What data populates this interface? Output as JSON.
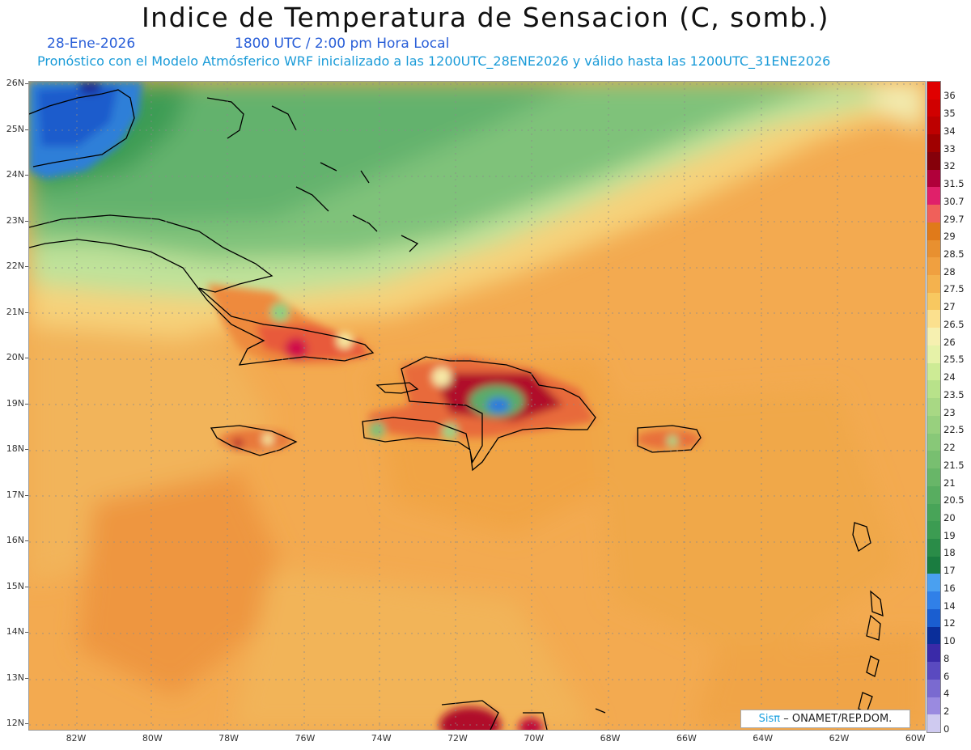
{
  "header": {
    "title": "Indice de Temperatura de Sensacion (C, somb.)",
    "date": "28-Ene-2026",
    "time": "1800 UTC / 2:00 pm Hora Local",
    "description": "Pronóstico con el Modelo Atmósferico WRF inicializado a las 1200UTC_28ENE2026 y válido hasta las  1200UTC_31ENE2026"
  },
  "map": {
    "lat_labels": [
      "26N",
      "25N",
      "24N",
      "23N",
      "22N",
      "21N",
      "20N",
      "19N",
      "18N",
      "17N",
      "16N",
      "15N",
      "14N",
      "13N",
      "12N"
    ],
    "lon_labels": [
      "82W",
      "80W",
      "78W",
      "76W",
      "74W",
      "72W",
      "70W",
      "68W",
      "66W",
      "64W",
      "62W",
      "60W"
    ],
    "extent": {
      "lon_min": -83.2,
      "lon_max": -60,
      "lat_min": 11.9,
      "lat_max": 26.05
    }
  },
  "colorbar": {
    "labels": [
      "36",
      "35",
      "34",
      "33",
      "32",
      "31.5",
      "30.7",
      "29.7",
      "29",
      "28.5",
      "28",
      "27.5",
      "27",
      "26.5",
      "26",
      "25.5",
      "24",
      "23.5",
      "23",
      "22.5",
      "22",
      "21.5",
      "21",
      "20.5",
      "20",
      "19",
      "18",
      "17",
      "16",
      "14",
      "12",
      "10",
      "8",
      "6",
      "4",
      "2",
      "0"
    ],
    "colors": [
      "#e00000",
      "#d00000",
      "#bd0000",
      "#a00000",
      "#85000a",
      "#b0003a",
      "#e0206a",
      "#f0605a",
      "#e07a1a",
      "#e89030",
      "#f0a040",
      "#f4b24e",
      "#f8c860",
      "#fbe08e",
      "#f6f0b0",
      "#e6f2a8",
      "#cdeb95",
      "#b8e28a",
      "#a8d884",
      "#98d07e",
      "#88c878",
      "#78bf70",
      "#68b668",
      "#58ad60",
      "#48a458",
      "#3c9c52",
      "#2a8c48",
      "#1a7c40",
      "#4aa0f0",
      "#3080e8",
      "#1a5ed0",
      "#0a2e9a",
      "#3a2aa8",
      "#5a4ac0",
      "#7a6ad0",
      "#9a8ae0",
      "#cfcaf0"
    ]
  },
  "credit": {
    "sis": "Sisπ",
    "text": "– ONAMET/REP.DOM."
  }
}
